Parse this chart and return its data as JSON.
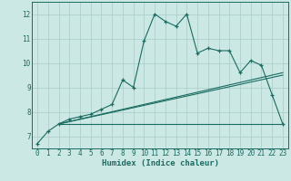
{
  "xlabel": "Humidex (Indice chaleur)",
  "bg_color": "#cce8e5",
  "grid_color": "#a8ccc8",
  "line_color": "#1a6b60",
  "xlim": [
    -0.5,
    23.5
  ],
  "ylim": [
    6.5,
    12.5
  ],
  "yticks": [
    7,
    8,
    9,
    10,
    11,
    12
  ],
  "xticks": [
    0,
    1,
    2,
    3,
    4,
    5,
    6,
    7,
    8,
    9,
    10,
    11,
    12,
    13,
    14,
    15,
    16,
    17,
    18,
    19,
    20,
    21,
    22,
    23
  ],
  "series1_x": [
    0,
    1,
    2,
    3,
    4,
    5,
    6,
    7,
    8,
    9,
    10,
    11,
    12,
    13,
    14,
    15,
    16,
    17,
    18,
    19,
    20,
    21,
    22,
    23
  ],
  "series1_y": [
    6.7,
    7.2,
    7.5,
    7.7,
    7.8,
    7.9,
    8.1,
    8.3,
    9.3,
    9.0,
    10.9,
    12.0,
    11.7,
    11.5,
    12.0,
    10.4,
    10.6,
    10.5,
    10.5,
    9.6,
    10.1,
    9.9,
    8.7,
    7.5
  ],
  "series2_x": [
    2,
    23
  ],
  "series2_y": [
    7.5,
    7.5
  ],
  "series3_x": [
    2,
    23
  ],
  "series3_y": [
    7.5,
    9.6
  ],
  "series4_x": [
    2,
    23
  ],
  "series4_y": [
    7.5,
    9.5
  ],
  "font_size_label": 6.5,
  "font_size_tick": 5.5
}
